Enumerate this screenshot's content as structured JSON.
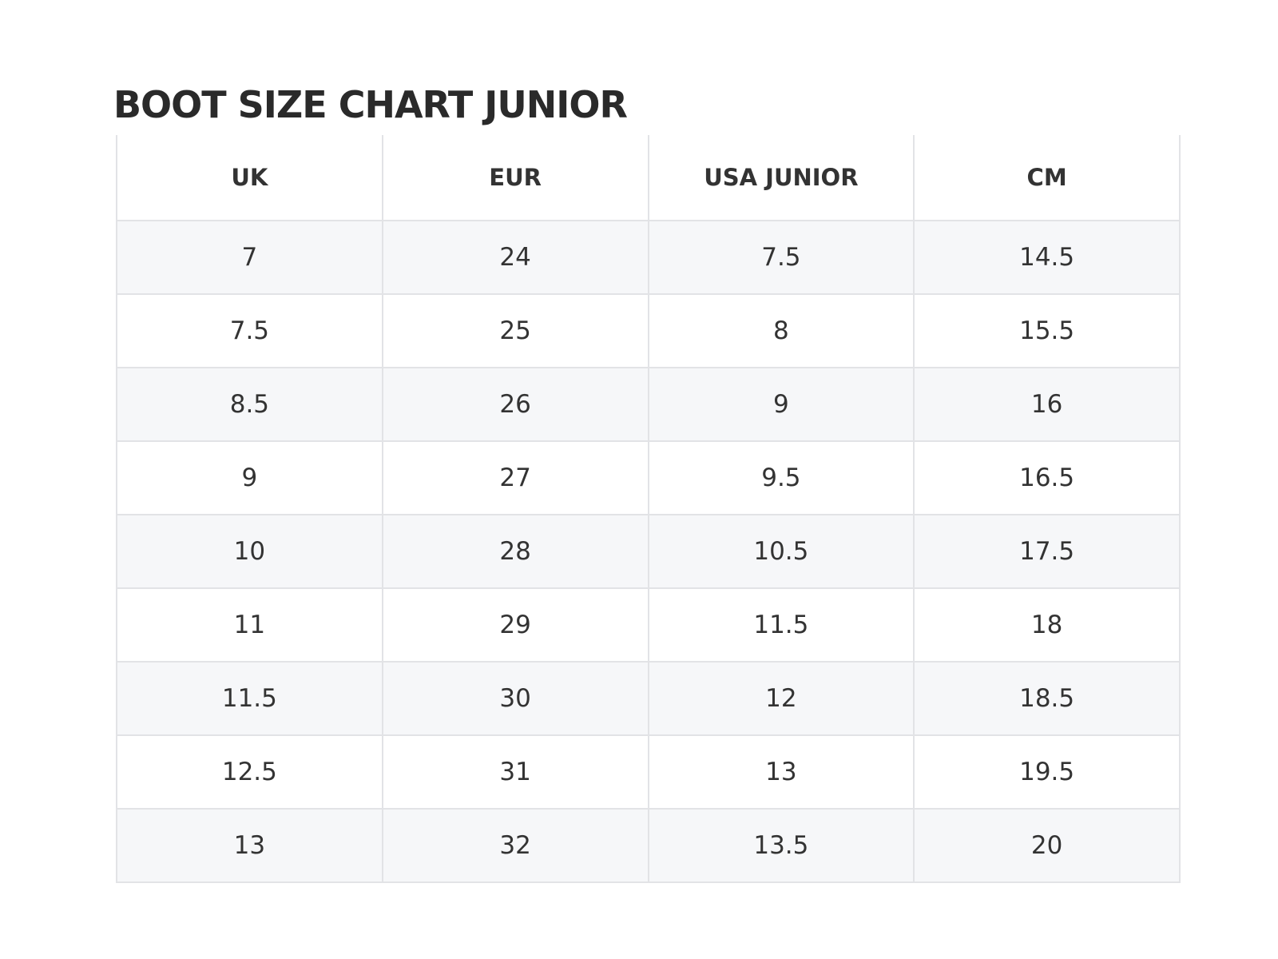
{
  "header": {
    "title": "BOOT SIZE CHART JUNIOR"
  },
  "table": {
    "columns": [
      "UK",
      "EUR",
      "USA JUNIOR",
      "CM"
    ],
    "rows": [
      [
        "7",
        "24",
        "7.5",
        "14.5"
      ],
      [
        "7.5",
        "25",
        "8",
        "15.5"
      ],
      [
        "8.5",
        "26",
        "9",
        "16"
      ],
      [
        "9",
        "27",
        "9.5",
        "16.5"
      ],
      [
        "10",
        "28",
        "10.5",
        "17.5"
      ],
      [
        "11",
        "29",
        "11.5",
        "18"
      ],
      [
        "11.5",
        "30",
        "12",
        "18.5"
      ],
      [
        "12.5",
        "31",
        "13",
        "19.5"
      ],
      [
        "13",
        "32",
        "13.5",
        "20"
      ]
    ]
  }
}
